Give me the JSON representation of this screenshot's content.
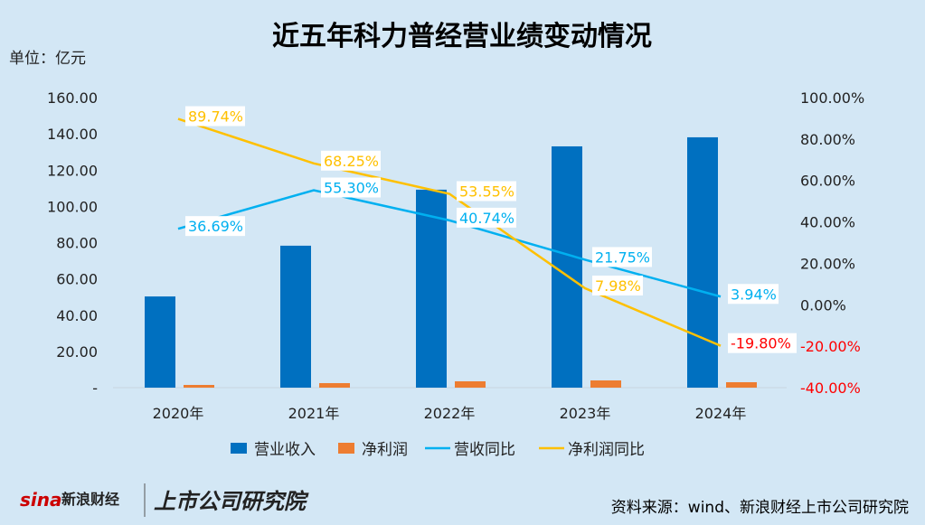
{
  "chart_data": {
    "type": "bar+line",
    "title": "近五年科力普经营业绩变动情况",
    "unit_label": "单位：亿元",
    "categories": [
      "2020年",
      "2021年",
      "2022年",
      "2023年",
      "2024年"
    ],
    "left_axis": {
      "ylim": [
        0,
        160
      ],
      "ticks": [
        "-",
        "20.00",
        "40.00",
        "60.00",
        "80.00",
        "100.00",
        "120.00",
        "140.00",
        "160.00"
      ]
    },
    "right_axis": {
      "ylim": [
        -40,
        100
      ],
      "ticks": [
        "-40.00%",
        "-20.00%",
        "0.00%",
        "20.00%",
        "40.00%",
        "60.00%",
        "80.00%",
        "100.00%"
      ],
      "negative_color": "#ff0000"
    },
    "series": [
      {
        "name": "营业收入",
        "type": "bar",
        "axis": "left",
        "color": "#0070c0",
        "values": [
          50.3,
          78.3,
          109.2,
          133.1,
          138.1
        ]
      },
      {
        "name": "净利润",
        "type": "bar",
        "axis": "left",
        "color": "#ed7d31",
        "values": [
          1.5,
          2.5,
          3.5,
          4.0,
          3.0
        ]
      },
      {
        "name": "营收同比",
        "type": "line",
        "axis": "right",
        "color": "#00b0f0",
        "values": [
          36.69,
          55.3,
          40.74,
          21.75,
          3.94
        ],
        "labels": [
          "36.69%",
          "55.30%",
          "40.74%",
          "21.75%",
          "3.94%"
        ]
      },
      {
        "name": "净利润同比",
        "type": "line",
        "axis": "right",
        "color": "#ffc000",
        "values": [
          89.74,
          68.25,
          53.55,
          7.98,
          -19.8
        ],
        "labels": [
          "89.74%",
          "68.25%",
          "53.55%",
          "7.98%",
          "-19.80%"
        ]
      }
    ],
    "legend_position": "bottom",
    "grid": false
  },
  "footer": {
    "source": "资料来源：wind、新浪财经上市公司研究院",
    "logo_sina": "sina新浪财经",
    "logo_institute": "上市公司研究院"
  }
}
